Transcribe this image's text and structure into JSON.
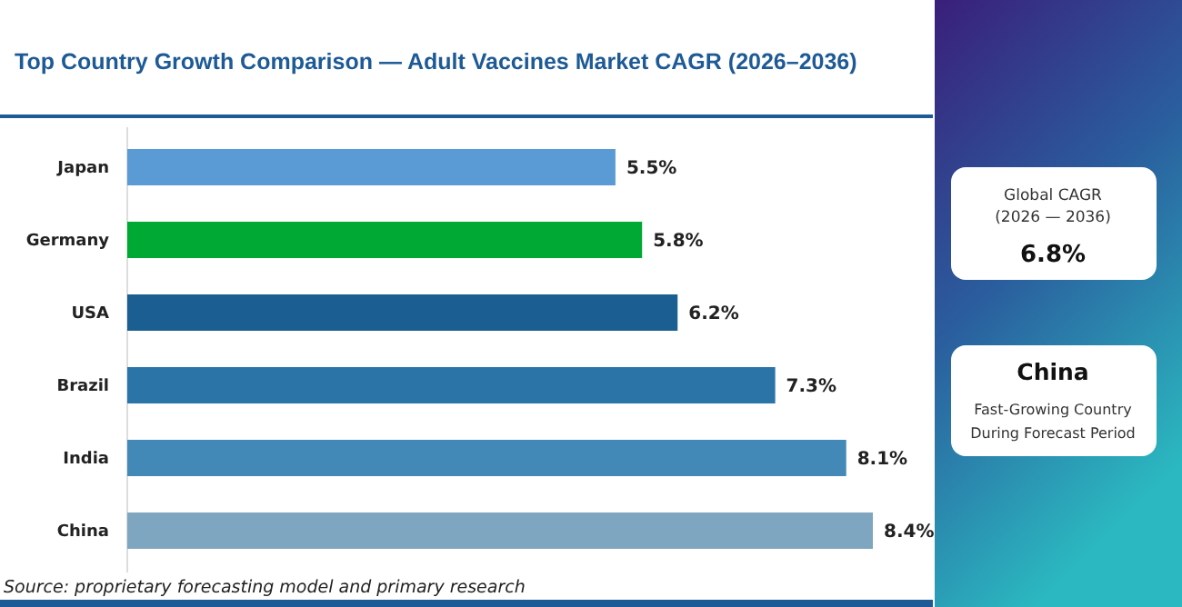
{
  "chart_data": {
    "type": "bar",
    "orientation": "horizontal",
    "title": "Top Country Growth Comparison — Adult Vaccines Market CAGR (2026–2036)",
    "categories": [
      "Japan",
      "Germany",
      "USA",
      "Brazil",
      "India",
      "China"
    ],
    "values": [
      5.5,
      5.8,
      6.2,
      7.3,
      8.1,
      8.4
    ],
    "colors": [
      "#5b9bd5",
      "#00a933",
      "#1a5e92",
      "#2a74a8",
      "#4389b8",
      "#7fa6c0"
    ],
    "value_labels": [
      "5.5%",
      "5.8%",
      "6.2%",
      "7.3%",
      "8.1%",
      "8.4%"
    ],
    "annotations": [
      "Source: proprietary forecasting model and primary research",
      "Global CAGR",
      "(2026 — 2036)",
      "6.8%",
      "China",
      "Fast-Growing Country",
      "During Forecast Period"
    ]
  }
}
